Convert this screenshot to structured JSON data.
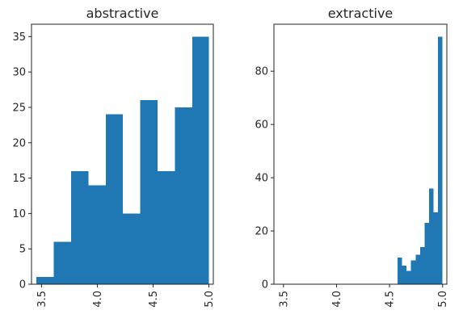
{
  "chart_data": [
    {
      "type": "bar",
      "title": "abstractive",
      "xlabel": "",
      "ylabel": "",
      "xlim": [
        3.41,
        5.04
      ],
      "ylim": [
        0,
        36.75
      ],
      "x_ticks": [
        3.5,
        4.0,
        4.5,
        5.0
      ],
      "x_tick_labels": [
        "3.5",
        "4.0",
        "4.5",
        "5.0"
      ],
      "y_ticks": [
        0,
        5,
        10,
        15,
        20,
        25,
        30,
        35
      ],
      "y_tick_labels": [
        "0",
        "5",
        "10",
        "15",
        "20",
        "25",
        "30",
        "35"
      ],
      "bins": [
        {
          "x0": 3.455,
          "x1": 3.61,
          "count": 1
        },
        {
          "x0": 3.61,
          "x1": 3.765,
          "count": 6
        },
        {
          "x0": 3.765,
          "x1": 3.92,
          "count": 16
        },
        {
          "x0": 3.92,
          "x1": 4.075,
          "count": 14
        },
        {
          "x0": 4.075,
          "x1": 4.23,
          "count": 24
        },
        {
          "x0": 4.23,
          "x1": 4.385,
          "count": 10
        },
        {
          "x0": 4.385,
          "x1": 4.54,
          "count": 26
        },
        {
          "x0": 4.54,
          "x1": 4.695,
          "count": 16
        },
        {
          "x0": 4.695,
          "x1": 4.85,
          "count": 25
        },
        {
          "x0": 4.85,
          "x1": 5.0,
          "count": 35
        }
      ],
      "color": "#1f77b4",
      "grid": false
    },
    {
      "type": "bar",
      "title": "extractive",
      "xlabel": "",
      "ylabel": "",
      "xlim": [
        3.41,
        5.04
      ],
      "ylim": [
        0,
        97.65
      ],
      "x_ticks": [
        3.5,
        4.0,
        4.5,
        5.0
      ],
      "x_tick_labels": [
        "3.5",
        "4.0",
        "4.5",
        "5.0"
      ],
      "y_ticks": [
        0,
        20,
        40,
        60,
        80
      ],
      "y_tick_labels": [
        "0",
        "20",
        "40",
        "60",
        "80"
      ],
      "bins": [
        {
          "x0": 4.575,
          "x1": 4.617,
          "count": 10
        },
        {
          "x0": 4.617,
          "x1": 4.66,
          "count": 7
        },
        {
          "x0": 4.66,
          "x1": 4.702,
          "count": 5
        },
        {
          "x0": 4.702,
          "x1": 4.745,
          "count": 9
        },
        {
          "x0": 4.745,
          "x1": 4.787,
          "count": 11
        },
        {
          "x0": 4.787,
          "x1": 4.83,
          "count": 14
        },
        {
          "x0": 4.83,
          "x1": 4.872,
          "count": 23
        },
        {
          "x0": 4.872,
          "x1": 4.915,
          "count": 36
        },
        {
          "x0": 4.915,
          "x1": 4.957,
          "count": 27
        },
        {
          "x0": 4.957,
          "x1": 5.0,
          "count": 93
        }
      ],
      "color": "#1f77b4",
      "grid": false
    }
  ]
}
